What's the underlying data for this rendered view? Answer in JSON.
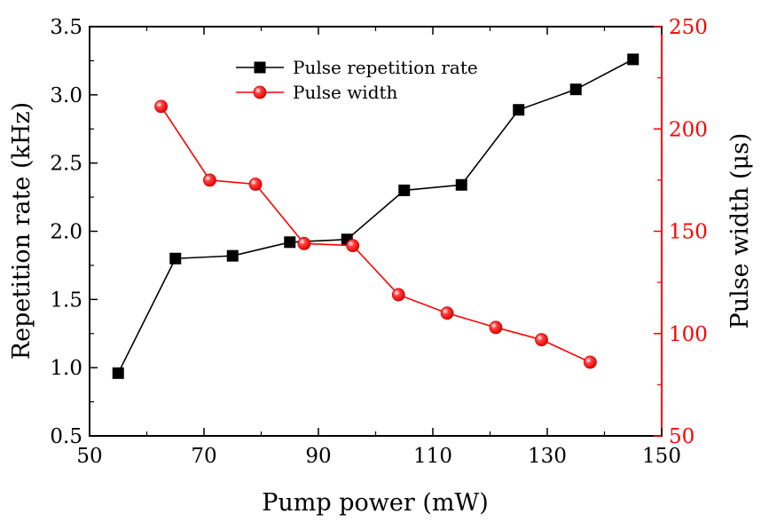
{
  "chart_data": {
    "type": "line",
    "xlabel": "Pump power (mW)",
    "ylabel_left": "Repetition rate (kHz)",
    "ylabel_right": "Pulse width (μs)",
    "xlim": [
      50,
      150
    ],
    "ylim_left": [
      0.5,
      3.5
    ],
    "ylim_right": [
      50,
      250
    ],
    "xticks": [
      "50",
      "70",
      "90",
      "110",
      "130",
      "150"
    ],
    "yticks_left": [
      "0.5",
      "1.0",
      "1.5",
      "2.0",
      "2.5",
      "3.0",
      "3.5"
    ],
    "yticks_right": [
      "50",
      "100",
      "150",
      "200",
      "250"
    ],
    "grid": false,
    "legend_position": "top-center",
    "series": [
      {
        "name": "Pulse repetition rate",
        "axis": "left",
        "marker": "square",
        "color": "#000000",
        "x": [
          55,
          65,
          75,
          85,
          95,
          105,
          115,
          125,
          135,
          145
        ],
        "y": [
          0.96,
          1.8,
          1.82,
          1.92,
          1.94,
          2.3,
          2.34,
          2.89,
          3.04,
          3.26
        ]
      },
      {
        "name": "Pulse width",
        "axis": "right",
        "marker": "circle",
        "color": "#ff0000",
        "x": [
          62.5,
          71,
          79,
          87.5,
          96,
          104,
          112.5,
          121,
          129,
          137.5
        ],
        "y": [
          211,
          175,
          173,
          144,
          143,
          119,
          110,
          103,
          97,
          86
        ]
      }
    ]
  }
}
